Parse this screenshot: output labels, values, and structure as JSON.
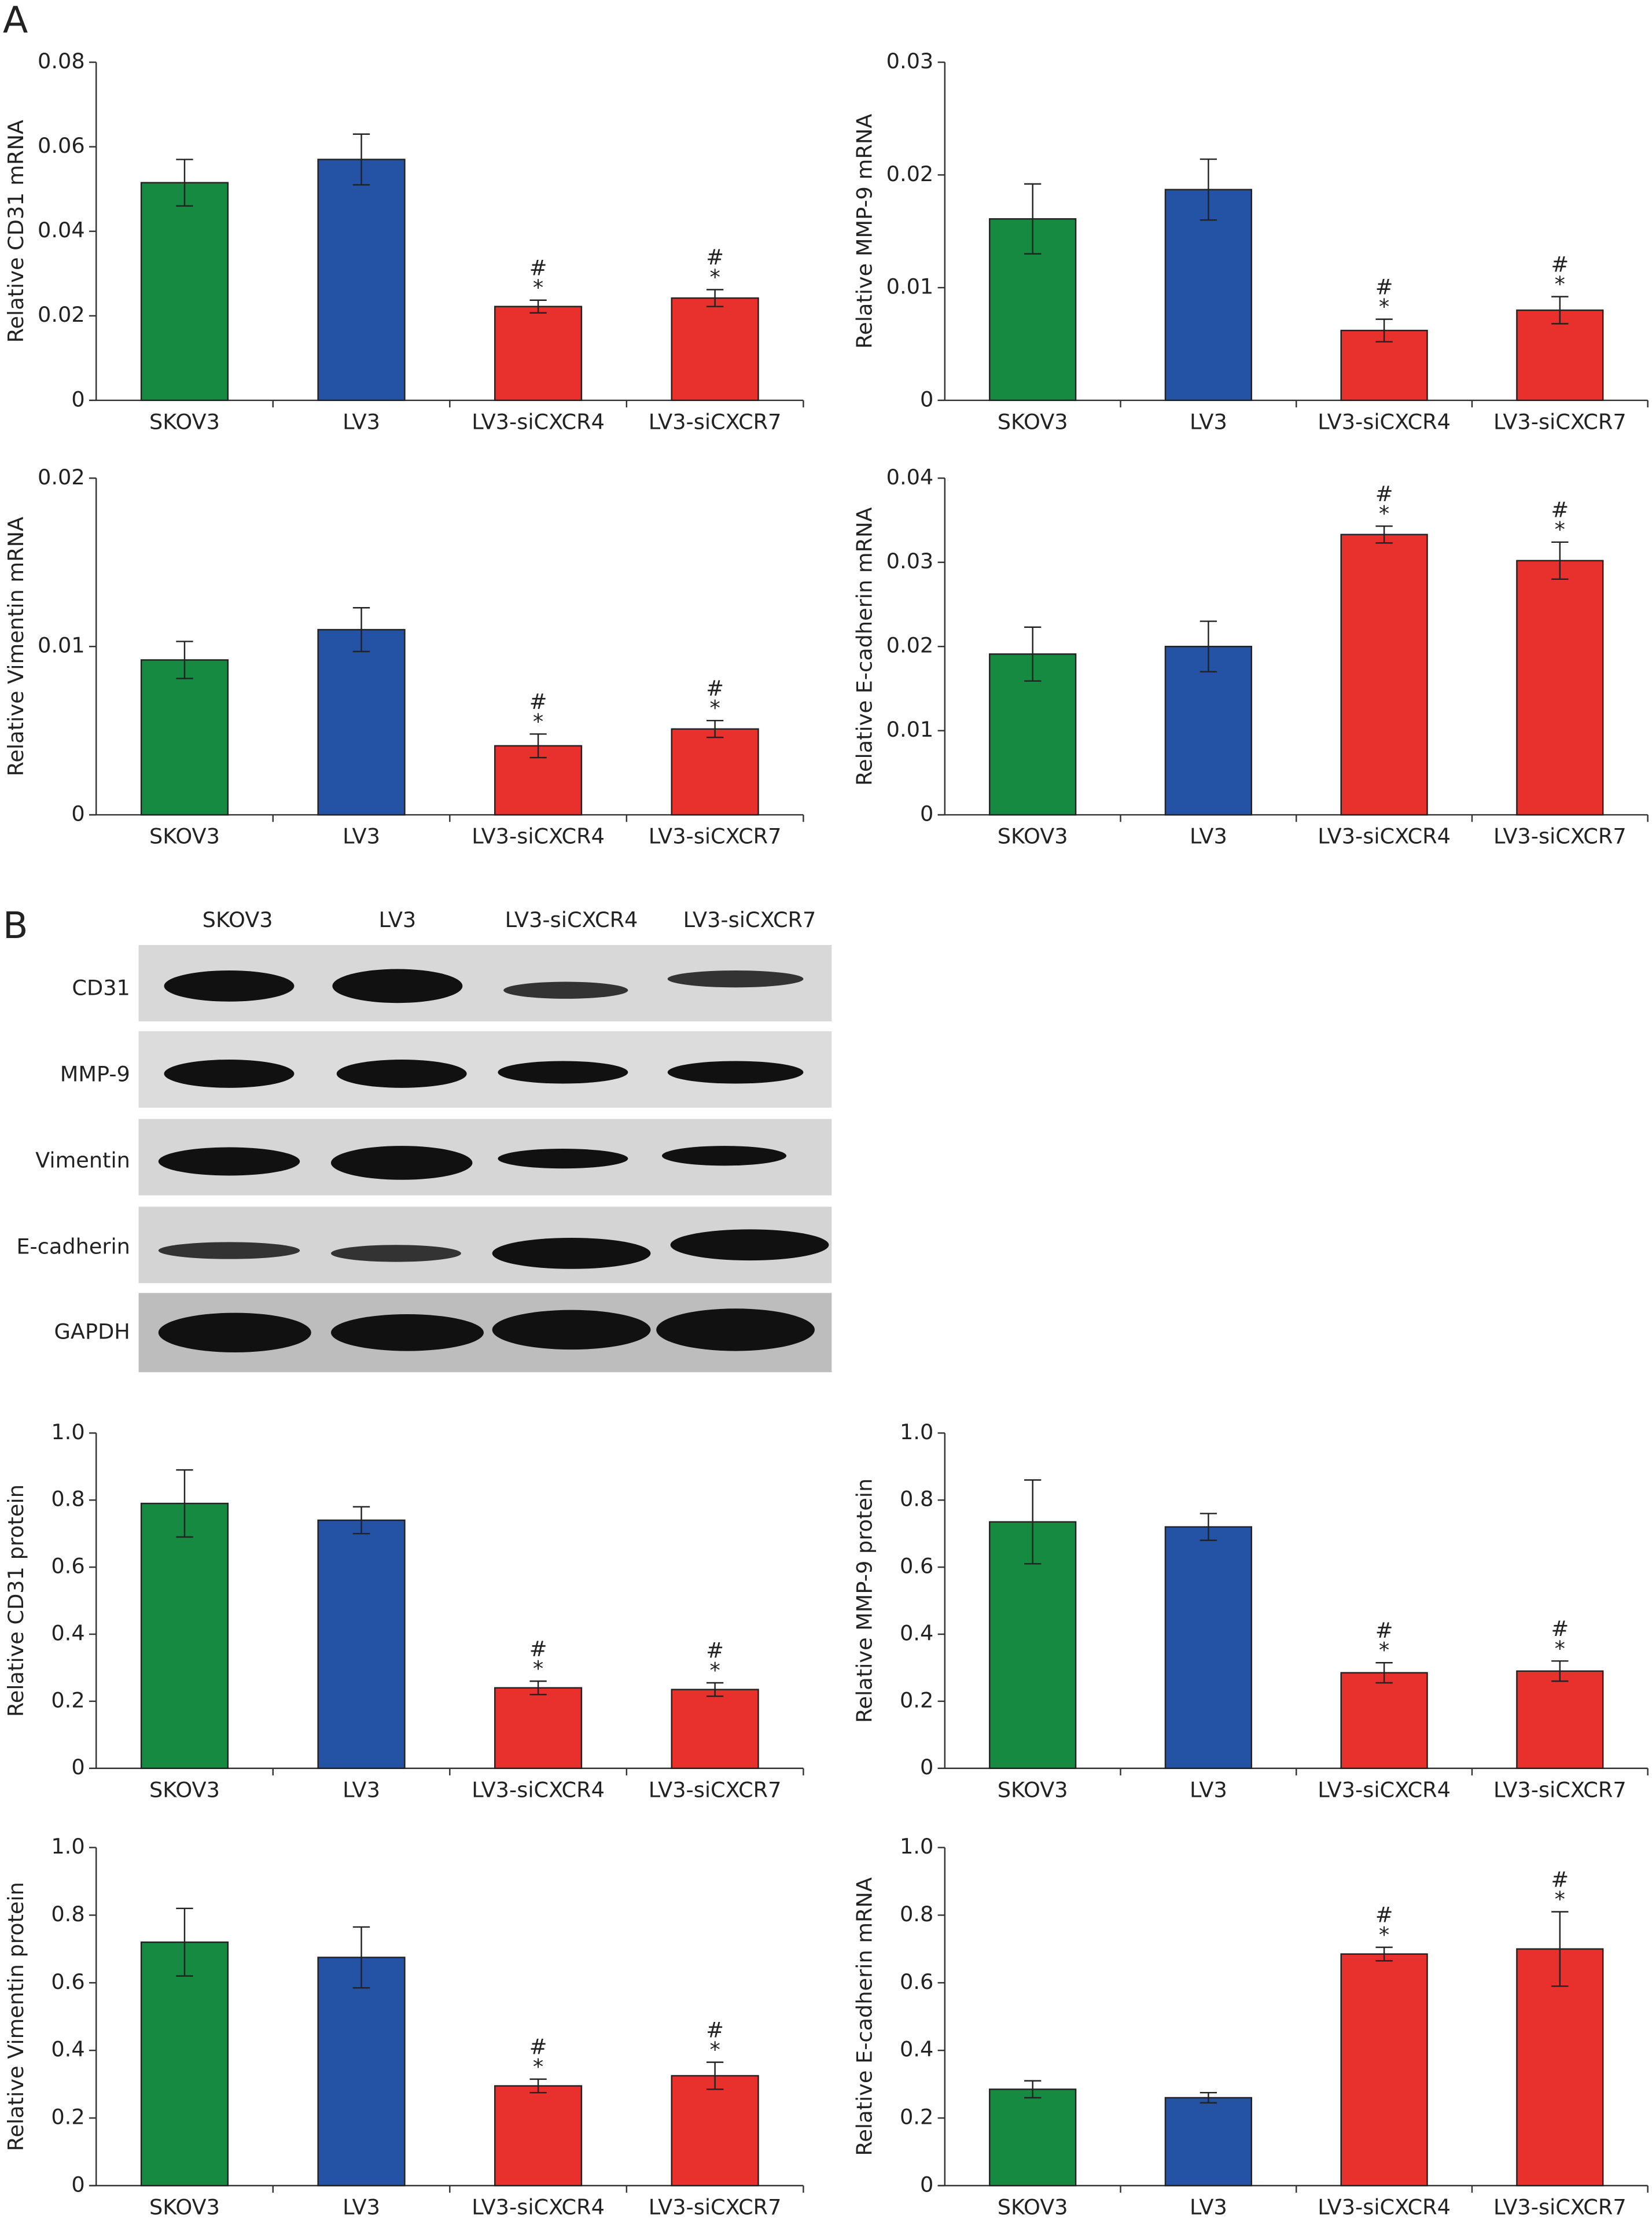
{
  "panels": {
    "a": "A",
    "b": "B"
  },
  "blot": {
    "lanes": [
      "SKOV3",
      "LV3",
      "LV3-siCXCR4",
      "LV3-siCXCR7"
    ],
    "rows": [
      "CD31",
      "MMP-9",
      "Vimentin",
      "E-cadherin",
      "GAPDH"
    ]
  },
  "chart_data": [
    {
      "type": "bar",
      "ylabel": "Relative CD31 mRNA",
      "categories": [
        "SKOV3",
        "LV3",
        "LV3-siCXCR4",
        "LV3-siCXCR7"
      ],
      "values": [
        0.0515,
        0.057,
        0.0222,
        0.0242
      ],
      "errors": [
        0.0055,
        0.006,
        0.0015,
        0.002
      ],
      "colors": [
        "#178a42",
        "#2452a4",
        "#e8312d",
        "#e8312d"
      ],
      "annotations": [
        null,
        null,
        [
          "#",
          "*"
        ],
        [
          "#",
          "*"
        ]
      ],
      "ylim": [
        0,
        0.08
      ],
      "yticks": [
        0,
        0.02,
        0.04,
        0.06,
        0.08
      ]
    },
    {
      "type": "bar",
      "ylabel": "Relative MMP-9 mRNA",
      "categories": [
        "SKOV3",
        "LV3",
        "LV3-siCXCR4",
        "LV3-siCXCR7"
      ],
      "values": [
        0.0161,
        0.0187,
        0.0062,
        0.008
      ],
      "errors": [
        0.0031,
        0.0027,
        0.001,
        0.0012
      ],
      "colors": [
        "#178a42",
        "#2452a4",
        "#e8312d",
        "#e8312d"
      ],
      "annotations": [
        null,
        null,
        [
          "#",
          "*"
        ],
        [
          "#",
          "*"
        ]
      ],
      "ylim": [
        0,
        0.03
      ],
      "yticks": [
        0,
        0.01,
        0.02,
        0.03
      ]
    },
    {
      "type": "bar",
      "ylabel": "Relative Vimentin mRNA",
      "categories": [
        "SKOV3",
        "LV3",
        "LV3-siCXCR4",
        "LV3-siCXCR7"
      ],
      "values": [
        0.0092,
        0.011,
        0.0041,
        0.0051
      ],
      "errors": [
        0.0011,
        0.0013,
        0.0007,
        0.0005
      ],
      "colors": [
        "#178a42",
        "#2452a4",
        "#e8312d",
        "#e8312d"
      ],
      "annotations": [
        null,
        null,
        [
          "#",
          "*"
        ],
        [
          "#",
          "*"
        ]
      ],
      "ylim": [
        0,
        0.02
      ],
      "yticks": [
        0,
        0.01,
        0.02
      ]
    },
    {
      "type": "bar",
      "ylabel": "Relative E-cadherin mRNA",
      "categories": [
        "SKOV3",
        "LV3",
        "LV3-siCXCR4",
        "LV3-siCXCR7"
      ],
      "values": [
        0.0191,
        0.02,
        0.0333,
        0.0302
      ],
      "errors": [
        0.0032,
        0.003,
        0.001,
        0.0022
      ],
      "colors": [
        "#178a42",
        "#2452a4",
        "#e8312d",
        "#e8312d"
      ],
      "annotations": [
        null,
        null,
        [
          "#",
          "*"
        ],
        [
          "#",
          "*"
        ]
      ],
      "ylim": [
        0,
        0.04
      ],
      "yticks": [
        0,
        0.01,
        0.02,
        0.03,
        0.04
      ]
    },
    {
      "type": "bar",
      "ylabel": "Relative CD31 protein",
      "categories": [
        "SKOV3",
        "LV3",
        "LV3-siCXCR4",
        "LV3-siCXCR7"
      ],
      "values": [
        0.79,
        0.74,
        0.24,
        0.235
      ],
      "errors": [
        0.1,
        0.04,
        0.02,
        0.02
      ],
      "colors": [
        "#178a42",
        "#2452a4",
        "#e8312d",
        "#e8312d"
      ],
      "annotations": [
        null,
        null,
        [
          "#",
          "*"
        ],
        [
          "#",
          "*"
        ]
      ],
      "ylim": [
        0,
        1
      ],
      "yticks": [
        0,
        0.2,
        0.4,
        0.6,
        0.8,
        {
          "value": 1,
          "label": "1.0"
        }
      ]
    },
    {
      "type": "bar",
      "ylabel": "Relative MMP-9 protein",
      "categories": [
        "SKOV3",
        "LV3",
        "LV3-siCXCR4",
        "LV3-siCXCR7"
      ],
      "values": [
        0.735,
        0.72,
        0.285,
        0.29
      ],
      "errors": [
        0.125,
        0.04,
        0.03,
        0.03
      ],
      "colors": [
        "#178a42",
        "#2452a4",
        "#e8312d",
        "#e8312d"
      ],
      "annotations": [
        null,
        null,
        [
          "#",
          "*"
        ],
        [
          "#",
          "*"
        ]
      ],
      "ylim": [
        0,
        1
      ],
      "yticks": [
        0,
        0.2,
        0.4,
        0.6,
        0.8,
        {
          "value": 1,
          "label": "1.0"
        }
      ]
    },
    {
      "type": "bar",
      "ylabel": "Relative Vimentin protein",
      "categories": [
        "SKOV3",
        "LV3",
        "LV3-siCXCR4",
        "LV3-siCXCR7"
      ],
      "values": [
        0.72,
        0.675,
        0.295,
        0.325
      ],
      "errors": [
        0.1,
        0.09,
        0.02,
        0.04
      ],
      "colors": [
        "#178a42",
        "#2452a4",
        "#e8312d",
        "#e8312d"
      ],
      "annotations": [
        null,
        null,
        [
          "#",
          "*"
        ],
        [
          "#",
          "*"
        ]
      ],
      "ylim": [
        0,
        1
      ],
      "yticks": [
        0,
        0.2,
        0.4,
        0.6,
        0.8,
        {
          "value": 1,
          "label": "1.0"
        }
      ]
    },
    {
      "type": "bar",
      "ylabel": "Relative E-cadherin mRNA",
      "categories": [
        "SKOV3",
        "LV3",
        "LV3-siCXCR4",
        "LV3-siCXCR7"
      ],
      "values": [
        0.285,
        0.26,
        0.685,
        0.7
      ],
      "errors": [
        0.025,
        0.015,
        0.02,
        0.11
      ],
      "colors": [
        "#178a42",
        "#2452a4",
        "#e8312d",
        "#e8312d"
      ],
      "annotations": [
        null,
        null,
        [
          "#",
          "*"
        ],
        [
          "#",
          "*"
        ]
      ],
      "ylim": [
        0,
        1
      ],
      "yticks": [
        0,
        0.2,
        0.4,
        0.6,
        0.8,
        {
          "value": 1,
          "label": "1.0"
        }
      ]
    }
  ]
}
